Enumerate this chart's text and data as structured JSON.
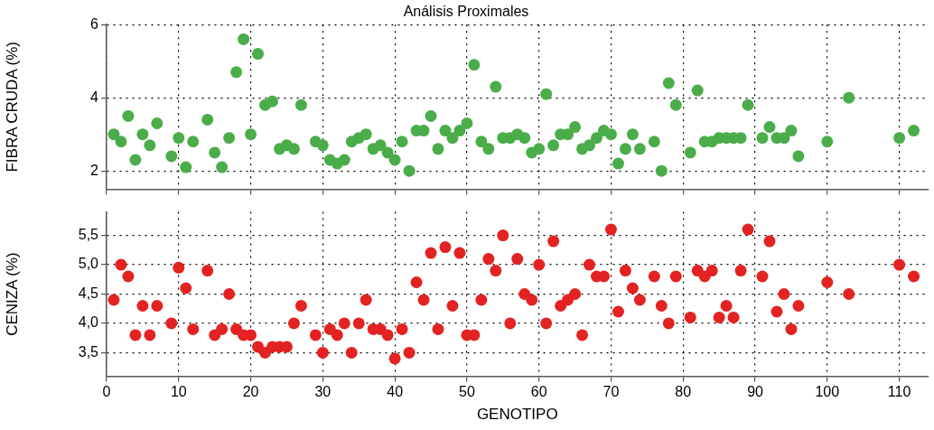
{
  "chart_data": [
    {
      "type": "scatter",
      "title": "Análisis Proximales",
      "ylabel": "FIBRA CRUDA (%)",
      "x": [
        1,
        2,
        3,
        4,
        5,
        6,
        7,
        9,
        10,
        11,
        12,
        14,
        15,
        16,
        17,
        18,
        19,
        20,
        21,
        22,
        23,
        24,
        25,
        26,
        27,
        29,
        30,
        31,
        32,
        33,
        34,
        35,
        36,
        37,
        38,
        39,
        40,
        41,
        42,
        43,
        44,
        45,
        46,
        47,
        48,
        49,
        50,
        51,
        52,
        53,
        54,
        55,
        56,
        57,
        58,
        59,
        60,
        61,
        62,
        63,
        64,
        65,
        66,
        67,
        68,
        69,
        70,
        71,
        72,
        73,
        74,
        76,
        77,
        78,
        79,
        81,
        82,
        83,
        84,
        85,
        86,
        87,
        88,
        89,
        91,
        92,
        93,
        94,
        95,
        96,
        100,
        103,
        110,
        112
      ],
      "series": [
        {
          "color": "#4aad4a",
          "values": [
            3.0,
            2.8,
            3.5,
            2.3,
            3.0,
            2.7,
            3.3,
            2.4,
            2.9,
            2.1,
            2.8,
            3.4,
            2.5,
            2.1,
            2.9,
            4.7,
            5.6,
            3.0,
            5.2,
            3.8,
            3.9,
            2.6,
            2.7,
            2.6,
            3.8,
            2.8,
            2.7,
            2.3,
            2.2,
            2.3,
            2.8,
            2.9,
            3.0,
            2.6,
            2.7,
            2.5,
            2.3,
            2.8,
            2.0,
            3.1,
            3.1,
            3.5,
            2.6,
            3.1,
            2.9,
            3.1,
            3.3,
            4.9,
            2.8,
            2.6,
            4.3,
            2.9,
            2.9,
            3.0,
            2.9,
            2.5,
            2.6,
            4.1,
            2.7,
            3.0,
            3.0,
            3.2,
            2.6,
            2.7,
            2.9,
            3.1,
            3.0,
            2.2,
            2.6,
            3.0,
            2.6,
            2.8,
            2.0,
            4.4,
            3.8,
            2.5,
            4.2,
            2.8,
            2.8,
            2.9,
            2.9,
            2.9,
            2.9,
            3.8,
            2.9,
            3.2,
            2.9,
            2.9,
            3.1,
            2.4,
            2.8,
            4.0,
            2.9,
            3.1
          ]
        }
      ],
      "xlim": [
        0,
        114
      ],
      "xticks": [
        0,
        10,
        20,
        30,
        40,
        50,
        60,
        70,
        80,
        90,
        100,
        110
      ],
      "ylim": [
        1.5,
        6
      ],
      "yticks": [
        2,
        4,
        6
      ],
      "tick_labels": "y",
      "grid": true,
      "legend": false,
      "marker": "circle"
    },
    {
      "type": "scatter",
      "xlabel": "GENOTIPO",
      "ylabel": "CENIZA (%)",
      "x": [
        1,
        2,
        3,
        4,
        5,
        6,
        7,
        9,
        10,
        11,
        12,
        14,
        15,
        16,
        17,
        18,
        19,
        20,
        21,
        22,
        23,
        24,
        25,
        26,
        27,
        29,
        30,
        31,
        32,
        33,
        34,
        35,
        36,
        37,
        38,
        39,
        40,
        41,
        42,
        43,
        44,
        45,
        46,
        47,
        48,
        49,
        50,
        51,
        52,
        53,
        54,
        55,
        56,
        57,
        58,
        59,
        60,
        61,
        62,
        63,
        64,
        65,
        66,
        67,
        68,
        69,
        70,
        71,
        72,
        73,
        74,
        76,
        77,
        78,
        79,
        81,
        82,
        83,
        84,
        85,
        86,
        87,
        88,
        89,
        91,
        92,
        93,
        94,
        95,
        96,
        100,
        103,
        110,
        112
      ],
      "series": [
        {
          "color": "#e32222",
          "values": [
            4.4,
            5.0,
            4.8,
            3.8,
            4.3,
            3.8,
            4.3,
            4.0,
            4.95,
            4.6,
            3.9,
            4.9,
            3.8,
            3.9,
            4.5,
            3.9,
            3.8,
            3.8,
            3.6,
            3.5,
            3.6,
            3.6,
            3.6,
            4.0,
            4.3,
            3.8,
            3.5,
            3.9,
            3.8,
            4.0,
            3.5,
            4.0,
            4.4,
            3.9,
            3.9,
            3.8,
            3.4,
            3.9,
            3.5,
            4.7,
            4.4,
            5.2,
            3.9,
            5.3,
            4.3,
            5.2,
            3.8,
            3.8,
            4.4,
            5.1,
            4.9,
            5.5,
            4.0,
            5.1,
            4.5,
            4.4,
            5.0,
            4.0,
            5.4,
            4.3,
            4.4,
            4.5,
            3.8,
            5.0,
            4.8,
            4.8,
            5.6,
            4.2,
            4.9,
            4.6,
            4.4,
            4.8,
            4.3,
            4.0,
            4.8,
            4.1,
            4.9,
            4.8,
            4.9,
            4.1,
            4.3,
            4.1,
            4.9,
            5.6,
            4.8,
            5.4,
            4.2,
            4.5,
            3.9,
            4.3,
            4.7,
            4.5,
            5.0,
            4.8
          ]
        }
      ],
      "xlim": [
        0,
        114
      ],
      "xticks": [
        0,
        10,
        20,
        30,
        40,
        50,
        60,
        70,
        80,
        90,
        100,
        110
      ],
      "ylim": [
        3.1,
        5.9
      ],
      "yticks": [
        {
          "value": 3.5,
          "label": "3,5"
        },
        {
          "value": 4.0,
          "label": "4,0"
        },
        {
          "value": 4.5,
          "label": "4,5"
        },
        {
          "value": 5.0,
          "label": "5,0"
        },
        {
          "value": 5.5,
          "label": "5,5"
        }
      ],
      "grid": true,
      "legend": false,
      "marker": "circle"
    }
  ]
}
